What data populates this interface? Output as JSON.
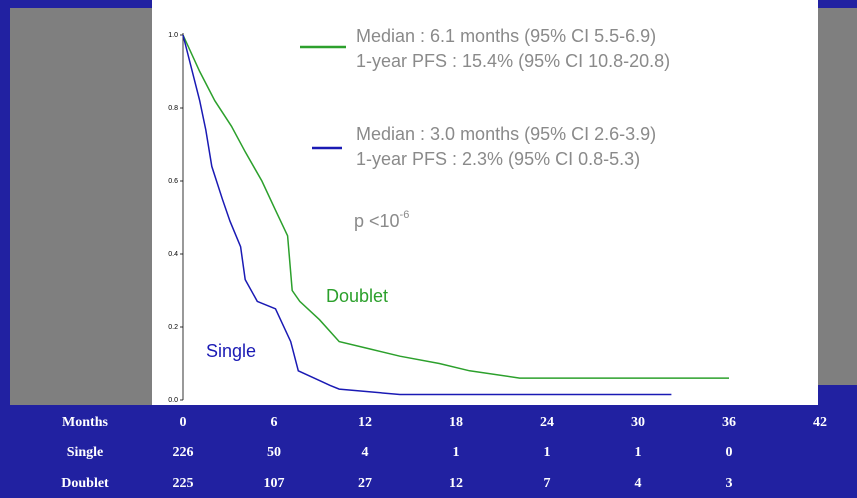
{
  "chart_data": {
    "type": "line",
    "xlim": [
      0,
      42
    ],
    "xticks": [
      0,
      6,
      12,
      18,
      24,
      30,
      36,
      42
    ],
    "ylim": [
      0,
      1
    ],
    "yticks": [
      {
        "value": 0,
        "label": "0.0"
      },
      {
        "value": 0.2,
        "label": "0.2"
      },
      {
        "value": 0.4,
        "label": "0.4"
      },
      {
        "value": 0.6,
        "label": "0.6"
      },
      {
        "value": 0.8,
        "label": "0.8"
      },
      {
        "value": 1,
        "label": "1.0"
      }
    ],
    "series": [
      {
        "name": "Doublet",
        "color": "#2ca02c",
        "x": [
          0,
          1.1,
          2.1,
          3.2,
          4.1,
          5.2,
          6.1,
          6.9,
          7.2,
          7.7,
          9.0,
          10.3,
          12.3,
          14.3,
          16.9,
          18.9,
          22.2,
          36
        ],
        "values": [
          1.0,
          0.9,
          0.82,
          0.75,
          0.68,
          0.6,
          0.52,
          0.45,
          0.3,
          0.27,
          0.22,
          0.16,
          0.14,
          0.12,
          0.1,
          0.08,
          0.06,
          0.06
        ],
        "annotation": [
          "Median : 6.1 months (95% CI 5.5-6.9)",
          "1-year PFS : 15.4% (95% CI 10.8-20.8)"
        ]
      },
      {
        "name": "Single",
        "color": "#1a1ab4",
        "x": [
          0,
          1.1,
          1.5,
          1.9,
          2.6,
          3.1,
          3.8,
          4.1,
          4.9,
          6.1,
          7.1,
          7.6,
          9.7,
          10.3,
          14.3,
          32.2
        ],
        "values": [
          1.0,
          0.82,
          0.74,
          0.64,
          0.55,
          0.49,
          0.42,
          0.33,
          0.27,
          0.25,
          0.16,
          0.08,
          0.04,
          0.03,
          0.015,
          0.015
        ],
        "annotation": [
          "Median : 3.0 months (95% CI 2.6-3.9)",
          "1-year PFS : 2.3% (95% CI 0.8-5.3)"
        ]
      }
    ],
    "p_value": {
      "text": "p <10",
      "exponent": "-6"
    },
    "risk_table": {
      "header": "Months",
      "rows": [
        {
          "name": "Single",
          "values": [
            226,
            50,
            4,
            1,
            1,
            1,
            0
          ]
        },
        {
          "name": "Doublet",
          "values": [
            225,
            107,
            27,
            12,
            7,
            4,
            3
          ]
        }
      ]
    }
  }
}
